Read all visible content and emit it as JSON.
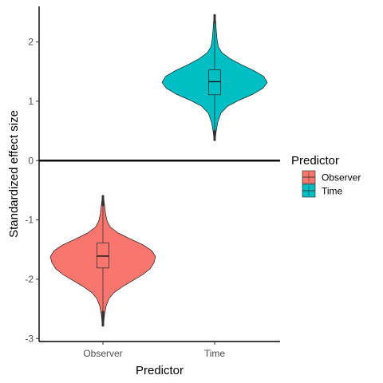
{
  "chart_data": {
    "type": "violin",
    "xlabel": "Predictor",
    "ylabel": "Standardized effect size",
    "categories": [
      "Observer",
      "Time"
    ],
    "ylim": [
      -3.05,
      2.6
    ],
    "yticks": [
      -3,
      -2,
      -1,
      0,
      1,
      2
    ],
    "ytick_labels": [
      "-3",
      "-2",
      "-1",
      "0",
      "1",
      "2"
    ],
    "reference_line": 0,
    "grid": false,
    "legend": {
      "title": "Predictor",
      "position": "right",
      "items": [
        {
          "label": "Observer",
          "color": "#F8766D"
        },
        {
          "label": "Time",
          "color": "#00BFC4"
        }
      ]
    },
    "series": [
      {
        "category": "Observer",
        "color": "#F8766D",
        "min": -2.78,
        "max": -0.6,
        "box": {
          "q1": -1.81,
          "median": -1.61,
          "q3": -1.39,
          "whisker_low": -2.55,
          "whisker_high": -0.75
        },
        "density": [
          [
            -2.78,
            0.01
          ],
          [
            -2.6,
            0.03
          ],
          [
            -2.45,
            0.06
          ],
          [
            -2.32,
            0.12
          ],
          [
            -2.22,
            0.22
          ],
          [
            -2.12,
            0.38
          ],
          [
            -2.02,
            0.57
          ],
          [
            -1.92,
            0.76
          ],
          [
            -1.82,
            0.9
          ],
          [
            -1.72,
            0.97
          ],
          [
            -1.62,
            1.0
          ],
          [
            -1.52,
            0.93
          ],
          [
            -1.42,
            0.76
          ],
          [
            -1.32,
            0.52
          ],
          [
            -1.22,
            0.29
          ],
          [
            -1.12,
            0.14
          ],
          [
            -1.02,
            0.08
          ],
          [
            -0.9,
            0.05
          ],
          [
            -0.75,
            0.03
          ],
          [
            -0.6,
            0.01
          ]
        ]
      },
      {
        "category": "Time",
        "color": "#00BFC4",
        "min": 0.35,
        "max": 2.45,
        "box": {
          "q1": 1.11,
          "median": 1.33,
          "q3": 1.53,
          "whisker_low": 0.5,
          "whisker_high": 2.33
        },
        "density": [
          [
            0.35,
            0.01
          ],
          [
            0.5,
            0.03
          ],
          [
            0.65,
            0.06
          ],
          [
            0.8,
            0.12
          ],
          [
            0.92,
            0.25
          ],
          [
            1.02,
            0.47
          ],
          [
            1.12,
            0.73
          ],
          [
            1.22,
            0.92
          ],
          [
            1.32,
            1.0
          ],
          [
            1.42,
            0.93
          ],
          [
            1.52,
            0.74
          ],
          [
            1.62,
            0.5
          ],
          [
            1.72,
            0.29
          ],
          [
            1.82,
            0.14
          ],
          [
            1.92,
            0.07
          ],
          [
            2.05,
            0.045
          ],
          [
            2.2,
            0.03
          ],
          [
            2.35,
            0.02
          ],
          [
            2.45,
            0.01
          ]
        ]
      }
    ]
  }
}
